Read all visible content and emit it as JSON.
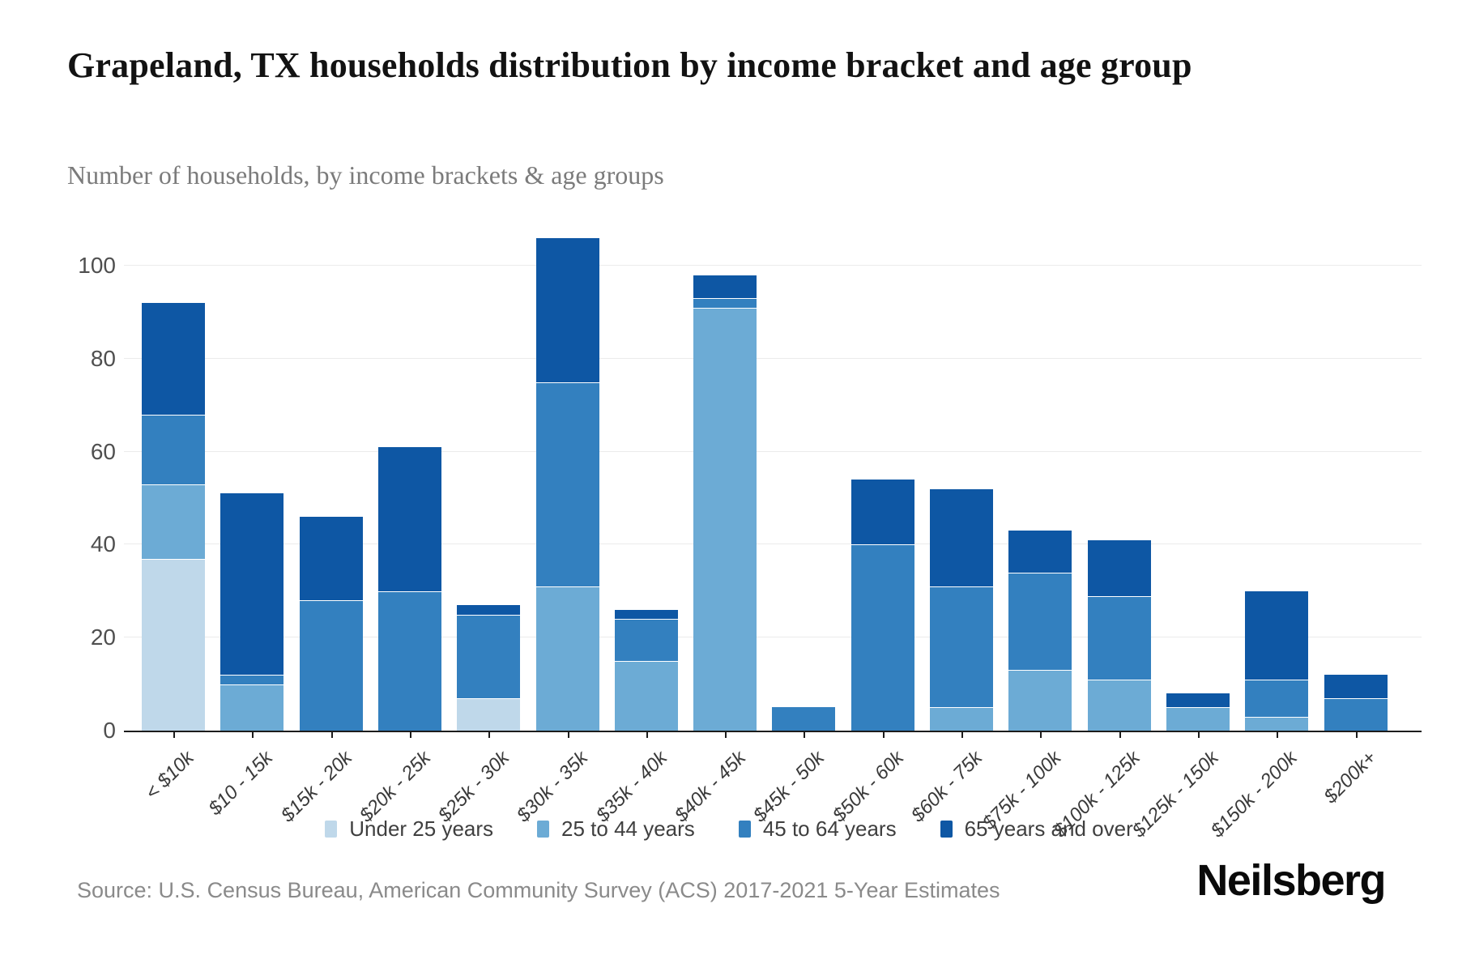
{
  "header": {
    "title": "Grapeland, TX households distribution by income bracket and age group",
    "subtitle": "Number of households, by income brackets & age groups"
  },
  "chart_data": {
    "type": "bar",
    "subtype": "stacked-vertical",
    "title": "Grapeland, TX households distribution by income bracket and age group",
    "xlabel": "",
    "ylabel": "",
    "grid": true,
    "legend_position": "bottom",
    "y_ticks": [
      0,
      20,
      40,
      60,
      80,
      100
    ],
    "ylim": [
      0,
      110
    ],
    "categories": [
      "< $10k",
      "$10 - 15k",
      "$15k - 20k",
      "$20k - 25k",
      "$25k - 30k",
      "$30k - 35k",
      "$35k - 40k",
      "$40k - 45k",
      "$45k - 50k",
      "$50k - 60k",
      "$60k - 75k",
      "$75k - 100k",
      "$100k - 125k",
      "$125k - 150k",
      "$150k - 200k",
      "$200k+"
    ],
    "series": [
      {
        "name": "Under 25 years",
        "color": "#bfd8ea",
        "values": [
          37,
          0,
          0,
          0,
          7,
          0,
          0,
          0,
          0,
          0,
          0,
          0,
          0,
          0,
          0,
          0
        ]
      },
      {
        "name": "25 to 44 years",
        "color": "#6cabd5",
        "values": [
          16,
          10,
          0,
          0,
          0,
          31,
          15,
          91,
          0,
          0,
          5,
          13,
          11,
          5,
          3,
          0
        ]
      },
      {
        "name": "45 to 64 years",
        "color": "#3380bf",
        "values": [
          15,
          2,
          28,
          30,
          18,
          44,
          9,
          2,
          5,
          40,
          26,
          21,
          18,
          0,
          8,
          7
        ]
      },
      {
        "name": "65 years and over",
        "color": "#0e57a4",
        "values": [
          24,
          39,
          18,
          31,
          2,
          31,
          2,
          5,
          0,
          14,
          21,
          9,
          12,
          3,
          19,
          5
        ]
      }
    ],
    "bar_totals": [
      92,
      51,
      46,
      61,
      27,
      106,
      26,
      98,
      5,
      54,
      52,
      43,
      41,
      8,
      30,
      12
    ]
  },
  "footer": {
    "source": "Source: U.S. Census Bureau, American Community Survey (ACS) 2017-2021 5-Year Estimates",
    "logo": "Neilsberg"
  }
}
